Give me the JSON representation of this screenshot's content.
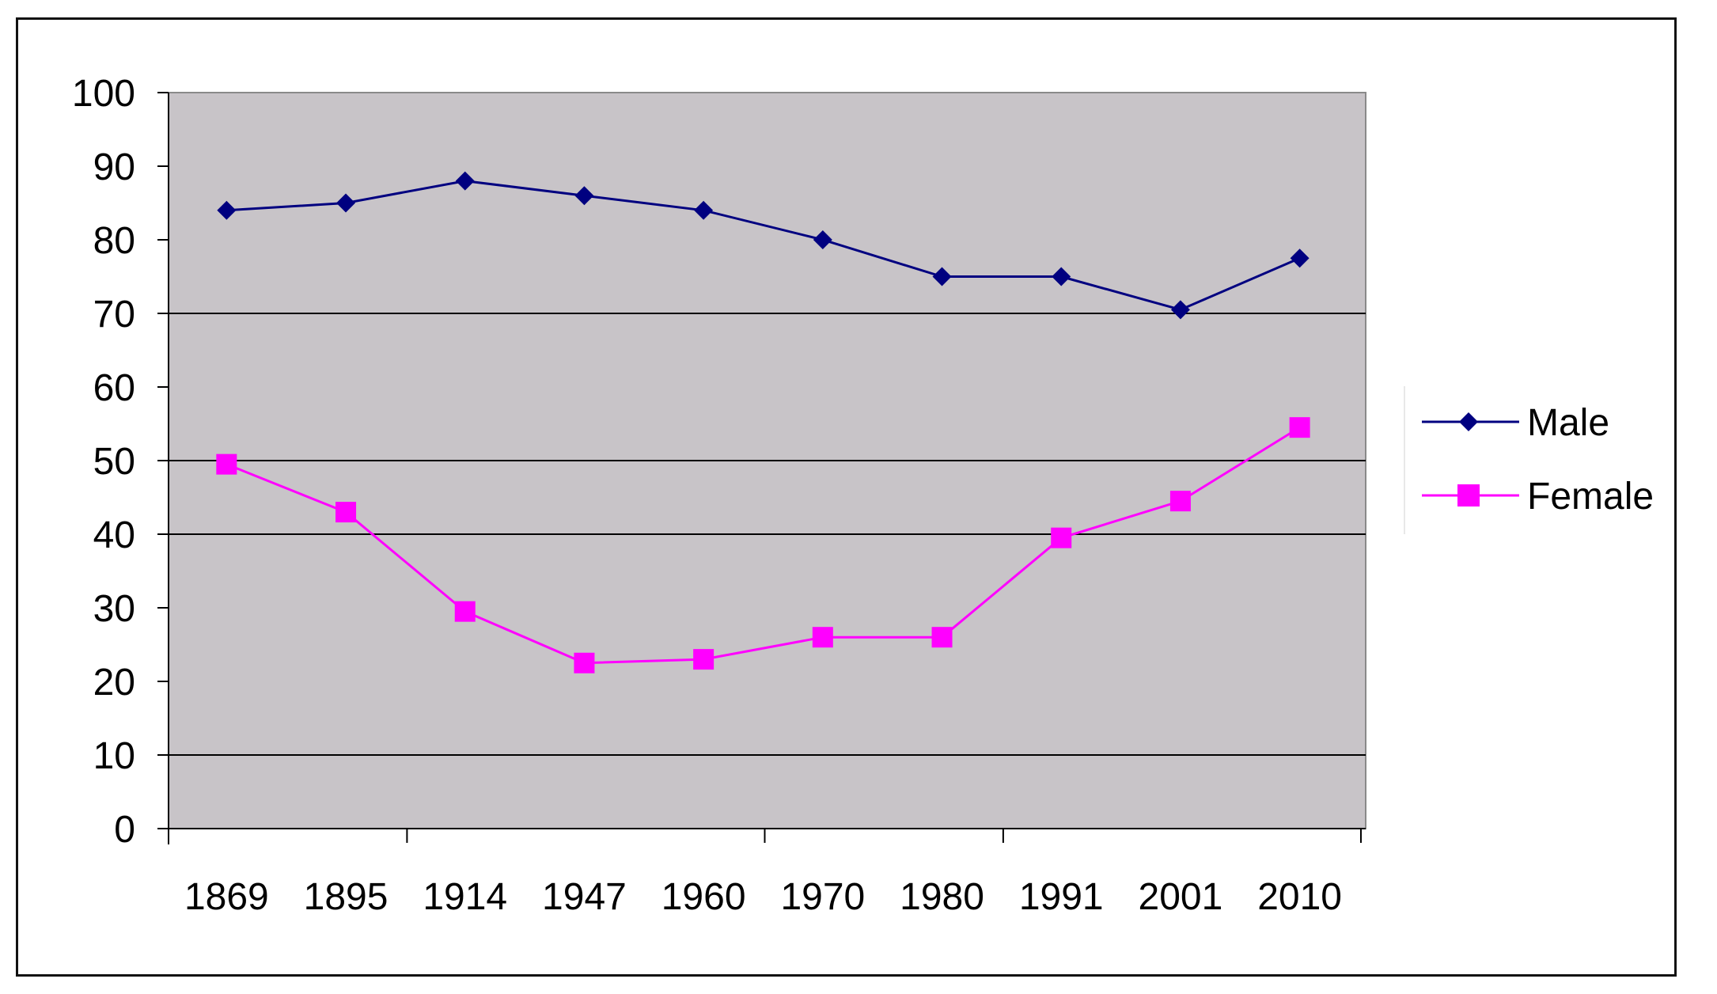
{
  "chart_data": {
    "type": "line",
    "title": "",
    "xlabel": "",
    "ylabel": "",
    "categories": [
      "1869",
      "1895",
      "1914",
      "1947",
      "1960",
      "1970",
      "1980",
      "1991",
      "2001",
      "2010"
    ],
    "ylim": [
      0,
      100
    ],
    "yticks": [
      "0",
      "10",
      "20",
      "30",
      "40",
      "50",
      "60",
      "70",
      "80",
      "90",
      "100"
    ],
    "grid": "horizontal lines at 10, 40, 50, 70",
    "legend_position": "right",
    "plot_background": "#c8c4c8",
    "series": [
      {
        "name": "Male",
        "color": "#000080",
        "marker": "diamond",
        "values": [
          84,
          85,
          88,
          86,
          84,
          80,
          75,
          75,
          70.5,
          77.5
        ]
      },
      {
        "name": "Female",
        "color": "#ff00ff",
        "marker": "square",
        "values": [
          49.5,
          43,
          29.5,
          22.5,
          23,
          26,
          26,
          39.5,
          44.5,
          54.5
        ]
      }
    ]
  }
}
